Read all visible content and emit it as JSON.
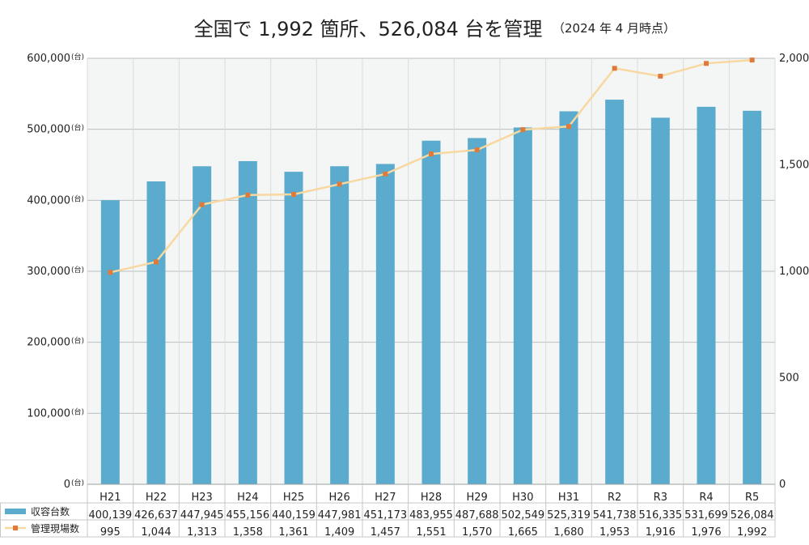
{
  "title": {
    "main": "全国で 1,992 箇所、526,084 台を管理",
    "note": "（2024 年 4 月時点）"
  },
  "y_unit": "(台)",
  "colors": {
    "bar": "#5aabcd",
    "line": "#f7d8a0",
    "marker": "#de7a3c",
    "plot_bg": "#f4f6f5",
    "grid": "#b8bec0"
  },
  "chart_data": {
    "type": "bar",
    "categories": [
      "H21",
      "H22",
      "H23",
      "H24",
      "H25",
      "H26",
      "H27",
      "H28",
      "H29",
      "H30",
      "H31",
      "R2",
      "R3",
      "R4",
      "R5"
    ],
    "series": [
      {
        "name": "収容台数",
        "type": "bar",
        "axis": "left",
        "values": [
          400139,
          426637,
          447945,
          455156,
          440159,
          447981,
          451173,
          483955,
          487688,
          502549,
          525319,
          541738,
          516335,
          531699,
          526084
        ],
        "labels": [
          "400,139",
          "426,637",
          "447,945",
          "455,156",
          "440,159",
          "447,981",
          "451,173",
          "483,955",
          "487,688",
          "502,549",
          "525,319",
          "541,738",
          "516,335",
          "531,699",
          "526,084"
        ]
      },
      {
        "name": "管理現場数",
        "type": "line",
        "axis": "right",
        "values": [
          995,
          1044,
          1313,
          1358,
          1361,
          1409,
          1457,
          1551,
          1570,
          1665,
          1680,
          1953,
          1916,
          1976,
          1992
        ],
        "labels": [
          "995",
          "1,044",
          "1,313",
          "1,358",
          "1,361",
          "1,409",
          "1,457",
          "1,551",
          "1,570",
          "1,665",
          "1,680",
          "1,953",
          "1,916",
          "1,976",
          "1,992"
        ]
      }
    ],
    "y_left": {
      "ylim": [
        0,
        600000
      ],
      "ticks": [
        0,
        100000,
        200000,
        300000,
        400000,
        500000,
        600000
      ],
      "tick_labels": [
        "0",
        "100,000",
        "200,000",
        "300,000",
        "400,000",
        "500,000",
        "600,000"
      ]
    },
    "y_right": {
      "ylim": [
        0,
        2000
      ],
      "ticks": [
        0,
        500,
        1000,
        1500,
        2000
      ],
      "tick_labels": [
        "0",
        "500",
        "1,000",
        "1,500",
        "2,000"
      ]
    },
    "grid": true,
    "legend": "table-bottom-left"
  }
}
